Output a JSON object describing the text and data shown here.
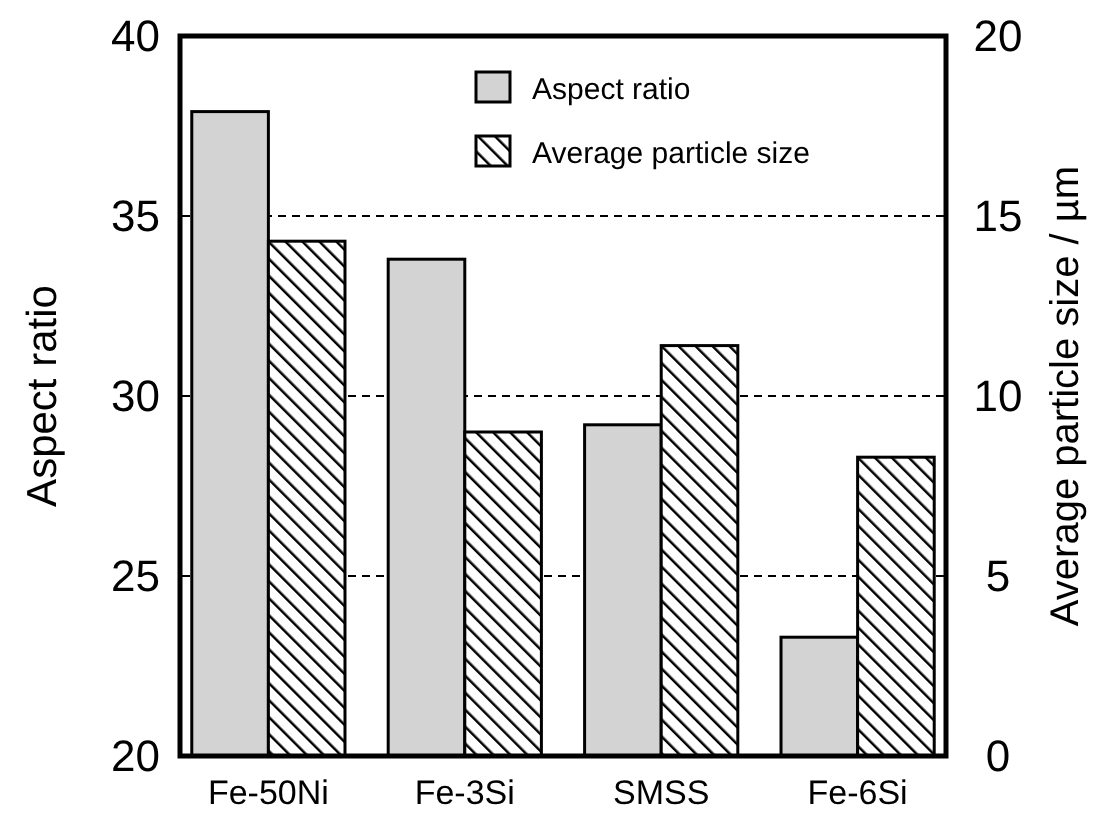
{
  "chart_data": {
    "type": "bar",
    "categories": [
      "Fe-50Ni",
      "Fe-3Si",
      "SMSS",
      "Fe-6Si"
    ],
    "series": [
      {
        "name": "Aspect ratio",
        "color": "#d3d3d3",
        "values": [
          37.9,
          33.8,
          29.2,
          23.3
        ]
      },
      {
        "name": "Average particle size",
        "color": "#000000",
        "axis": "y2",
        "values": [
          14.3,
          9.0,
          11.4,
          8.3
        ]
      }
    ],
    "ylabel": "Aspect ratio",
    "y2label": "Average particle size / µm",
    "ylim": [
      20,
      40
    ],
    "yticks": [
      20,
      25,
      30,
      35,
      40
    ],
    "y2lim": [
      0,
      20
    ],
    "y2ticks": [
      0,
      5,
      10,
      15,
      20
    ],
    "grid": "y",
    "legend": "top right"
  }
}
